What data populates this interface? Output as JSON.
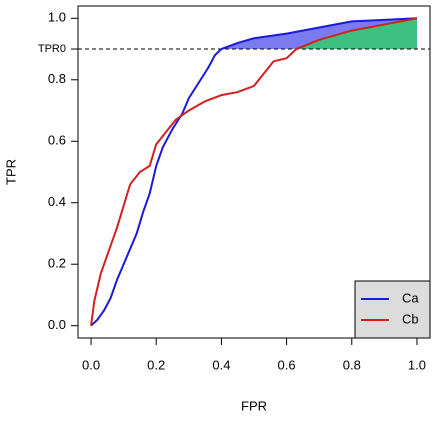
{
  "chart_data": {
    "type": "line",
    "x_label": "FPR",
    "y_label": "TPR",
    "xlim": [
      -0.04,
      1.04
    ],
    "ylim": [
      -0.04,
      1.04
    ],
    "xticks": [
      {
        "value": 0,
        "label": "0.0"
      },
      0.2,
      0.4,
      0.6,
      0.8,
      {
        "value": 1,
        "label": "1.0"
      }
    ],
    "yticks": [
      {
        "value": 0,
        "label": "0.0"
      },
      0.2,
      0.4,
      0.6,
      0.8,
      {
        "value": 0.9,
        "label": "TPR0"
      },
      {
        "value": 1,
        "label": "1.0"
      }
    ],
    "legend": "bottom-right",
    "series": [
      {
        "name": "Ca",
        "color": "#1a1adb",
        "x": [
          0,
          0.02,
          0.04,
          0.06,
          0.08,
          0.1,
          0.12,
          0.14,
          0.16,
          0.18,
          0.2,
          0.22,
          0.25,
          0.28,
          0.3,
          0.33,
          0.36,
          0.38,
          0.4,
          0.45,
          0.5,
          0.6,
          0.7,
          0.8,
          0.9,
          1
        ],
        "values": [
          0,
          0.02,
          0.05,
          0.09,
          0.15,
          0.2,
          0.25,
          0.3,
          0.37,
          0.43,
          0.52,
          0.58,
          0.64,
          0.69,
          0.74,
          0.79,
          0.84,
          0.88,
          0.9,
          0.92,
          0.935,
          0.95,
          0.97,
          0.99,
          0.995,
          1
        ],
        "fill": "#7b7bf0"
      },
      {
        "name": "Cb",
        "color": "#d42020",
        "x": [
          0,
          0.01,
          0.03,
          0.06,
          0.08,
          0.1,
          0.12,
          0.15,
          0.18,
          0.2,
          0.23,
          0.26,
          0.3,
          0.35,
          0.4,
          0.45,
          0.5,
          0.53,
          0.56,
          0.6,
          0.63,
          0.7,
          0.8,
          0.9,
          0.95,
          1
        ],
        "values": [
          0,
          0.08,
          0.17,
          0.26,
          0.32,
          0.39,
          0.46,
          0.5,
          0.52,
          0.59,
          0.63,
          0.67,
          0.7,
          0.73,
          0.75,
          0.76,
          0.78,
          0.82,
          0.86,
          0.87,
          0.9,
          0.93,
          0.96,
          0.98,
          0.99,
          1
        ],
        "fill": "#3dbf80"
      }
    ]
  }
}
